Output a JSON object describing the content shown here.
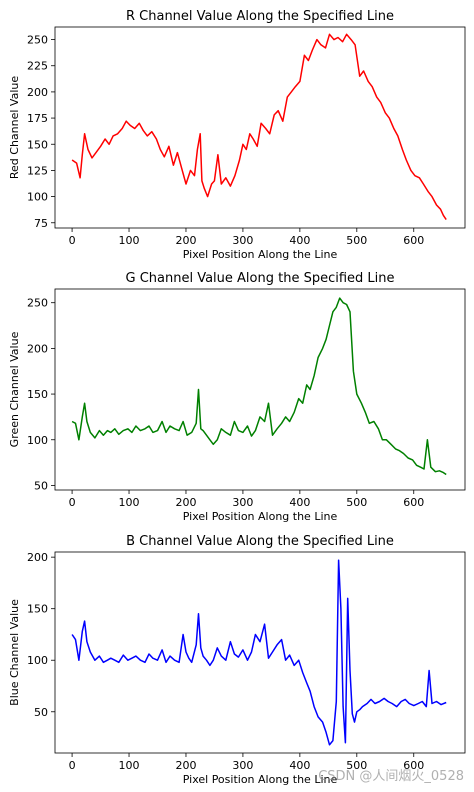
{
  "watermark": "CSDN @人间烟火_0528",
  "chart_data": [
    {
      "type": "line",
      "title": "R Channel Value Along the Specified Line",
      "xlabel": "Pixel Position Along the Line",
      "ylabel": "Red Channel Value",
      "xlim": [
        -30,
        690
      ],
      "ylim": [
        70,
        262
      ],
      "xticks": [
        0,
        100,
        200,
        300,
        400,
        500,
        600
      ],
      "yticks": [
        75,
        100,
        125,
        150,
        175,
        200,
        225,
        250
      ],
      "color": "#ff0000",
      "series": [
        {
          "x": [
            0,
            8,
            14,
            18,
            22,
            28,
            35,
            42,
            50,
            58,
            65,
            72,
            80,
            88,
            95,
            102,
            110,
            118,
            125,
            132,
            140,
            148,
            155,
            162,
            170,
            178,
            185,
            192,
            200,
            208,
            215,
            220,
            225,
            228,
            232,
            238,
            245,
            250,
            256,
            262,
            270,
            278,
            286,
            294,
            300,
            306,
            312,
            318,
            325,
            332,
            340,
            347,
            355,
            362,
            370,
            378,
            385,
            392,
            400,
            408,
            415,
            422,
            430,
            437,
            445,
            452,
            460,
            467,
            475,
            482,
            490,
            497,
            505,
            512,
            520,
            527,
            535,
            542,
            550,
            557,
            565,
            572,
            580,
            587,
            595,
            602,
            610,
            617,
            625,
            632,
            640,
            647,
            652,
            657
          ],
          "y": [
            135,
            132,
            118,
            140,
            160,
            145,
            137,
            142,
            148,
            155,
            150,
            158,
            160,
            165,
            172,
            168,
            165,
            170,
            163,
            158,
            162,
            155,
            145,
            138,
            148,
            130,
            142,
            128,
            112,
            125,
            120,
            145,
            160,
            115,
            108,
            100,
            112,
            115,
            140,
            112,
            118,
            110,
            120,
            135,
            150,
            145,
            160,
            155,
            148,
            170,
            165,
            160,
            178,
            182,
            172,
            195,
            200,
            205,
            210,
            235,
            230,
            240,
            250,
            245,
            242,
            255,
            250,
            252,
            248,
            255,
            250,
            245,
            215,
            220,
            210,
            205,
            195,
            190,
            180,
            175,
            165,
            158,
            145,
            135,
            125,
            120,
            118,
            112,
            105,
            100,
            92,
            88,
            82,
            78
          ]
        }
      ]
    },
    {
      "type": "line",
      "title": "G Channel Value Along the Specified Line",
      "xlabel": "Pixel Position Along the Line",
      "ylabel": "Green Channel Value",
      "xlim": [
        -30,
        690
      ],
      "ylim": [
        45,
        265
      ],
      "xticks": [
        0,
        100,
        200,
        300,
        400,
        500,
        600
      ],
      "yticks": [
        50,
        100,
        150,
        200,
        250
      ],
      "color": "#008000",
      "series": [
        {
          "x": [
            0,
            6,
            12,
            18,
            22,
            26,
            32,
            40,
            48,
            55,
            62,
            68,
            75,
            82,
            90,
            98,
            105,
            112,
            120,
            128,
            135,
            142,
            150,
            158,
            165,
            172,
            180,
            188,
            195,
            202,
            210,
            218,
            222,
            226,
            230,
            236,
            242,
            248,
            255,
            262,
            270,
            278,
            285,
            292,
            300,
            308,
            315,
            322,
            330,
            338,
            345,
            352,
            360,
            368,
            375,
            382,
            390,
            398,
            405,
            412,
            418,
            425,
            432,
            440,
            446,
            452,
            458,
            464,
            470,
            476,
            482,
            488,
            494,
            500,
            508,
            515,
            522,
            530,
            538,
            545,
            552,
            560,
            568,
            575,
            582,
            590,
            598,
            605,
            612,
            618,
            624,
            630,
            638,
            645,
            652,
            657
          ],
          "y": [
            120,
            118,
            100,
            125,
            140,
            120,
            108,
            102,
            110,
            105,
            110,
            108,
            112,
            106,
            110,
            112,
            108,
            115,
            110,
            112,
            115,
            108,
            110,
            120,
            108,
            115,
            112,
            110,
            120,
            105,
            108,
            118,
            155,
            112,
            110,
            105,
            100,
            95,
            100,
            112,
            108,
            105,
            120,
            110,
            108,
            115,
            104,
            110,
            125,
            120,
            140,
            105,
            112,
            118,
            125,
            120,
            130,
            145,
            140,
            160,
            155,
            170,
            190,
            200,
            210,
            225,
            240,
            245,
            255,
            250,
            248,
            240,
            175,
            150,
            140,
            130,
            118,
            120,
            112,
            100,
            100,
            95,
            90,
            88,
            85,
            80,
            78,
            72,
            70,
            68,
            100,
            70,
            65,
            66,
            64,
            62
          ]
        }
      ]
    },
    {
      "type": "line",
      "title": "B Channel Value Along the Specified Line",
      "xlabel": "Pixel Position Along the Line",
      "ylabel": "Blue Channel Value",
      "xlim": [
        -30,
        690
      ],
      "ylim": [
        10,
        205
      ],
      "xticks": [
        0,
        100,
        200,
        300,
        400,
        500,
        600
      ],
      "yticks": [
        50,
        100,
        150,
        200
      ],
      "color": "#0000ff",
      "series": [
        {
          "x": [
            0,
            6,
            12,
            18,
            22,
            26,
            32,
            40,
            48,
            55,
            62,
            68,
            75,
            82,
            90,
            98,
            105,
            112,
            120,
            128,
            135,
            142,
            150,
            158,
            165,
            172,
            180,
            188,
            195,
            200,
            205,
            210,
            218,
            222,
            226,
            230,
            236,
            242,
            248,
            255,
            262,
            270,
            278,
            285,
            292,
            300,
            308,
            315,
            322,
            330,
            338,
            345,
            352,
            360,
            368,
            375,
            382,
            390,
            398,
            405,
            412,
            418,
            425,
            432,
            440,
            446,
            452,
            458,
            464,
            468,
            472,
            476,
            480,
            484,
            488,
            492,
            496,
            500,
            505,
            510,
            518,
            525,
            532,
            540,
            548,
            555,
            562,
            570,
            578,
            585,
            592,
            600,
            608,
            615,
            622,
            627,
            632,
            640,
            648,
            657
          ],
          "y": [
            125,
            120,
            100,
            128,
            138,
            118,
            108,
            100,
            104,
            98,
            100,
            102,
            100,
            98,
            105,
            100,
            102,
            104,
            100,
            98,
            106,
            102,
            100,
            110,
            98,
            104,
            100,
            98,
            125,
            108,
            102,
            98,
            115,
            145,
            112,
            104,
            100,
            95,
            100,
            112,
            104,
            100,
            118,
            106,
            103,
            110,
            100,
            108,
            125,
            118,
            135,
            102,
            108,
            115,
            120,
            100,
            105,
            95,
            100,
            88,
            78,
            70,
            55,
            45,
            40,
            30,
            18,
            22,
            60,
            197,
            150,
            55,
            20,
            160,
            90,
            48,
            40,
            50,
            52,
            55,
            58,
            62,
            58,
            60,
            63,
            60,
            58,
            55,
            60,
            62,
            58,
            56,
            58,
            60,
            55,
            90,
            58,
            60,
            57,
            59
          ]
        }
      ]
    }
  ]
}
